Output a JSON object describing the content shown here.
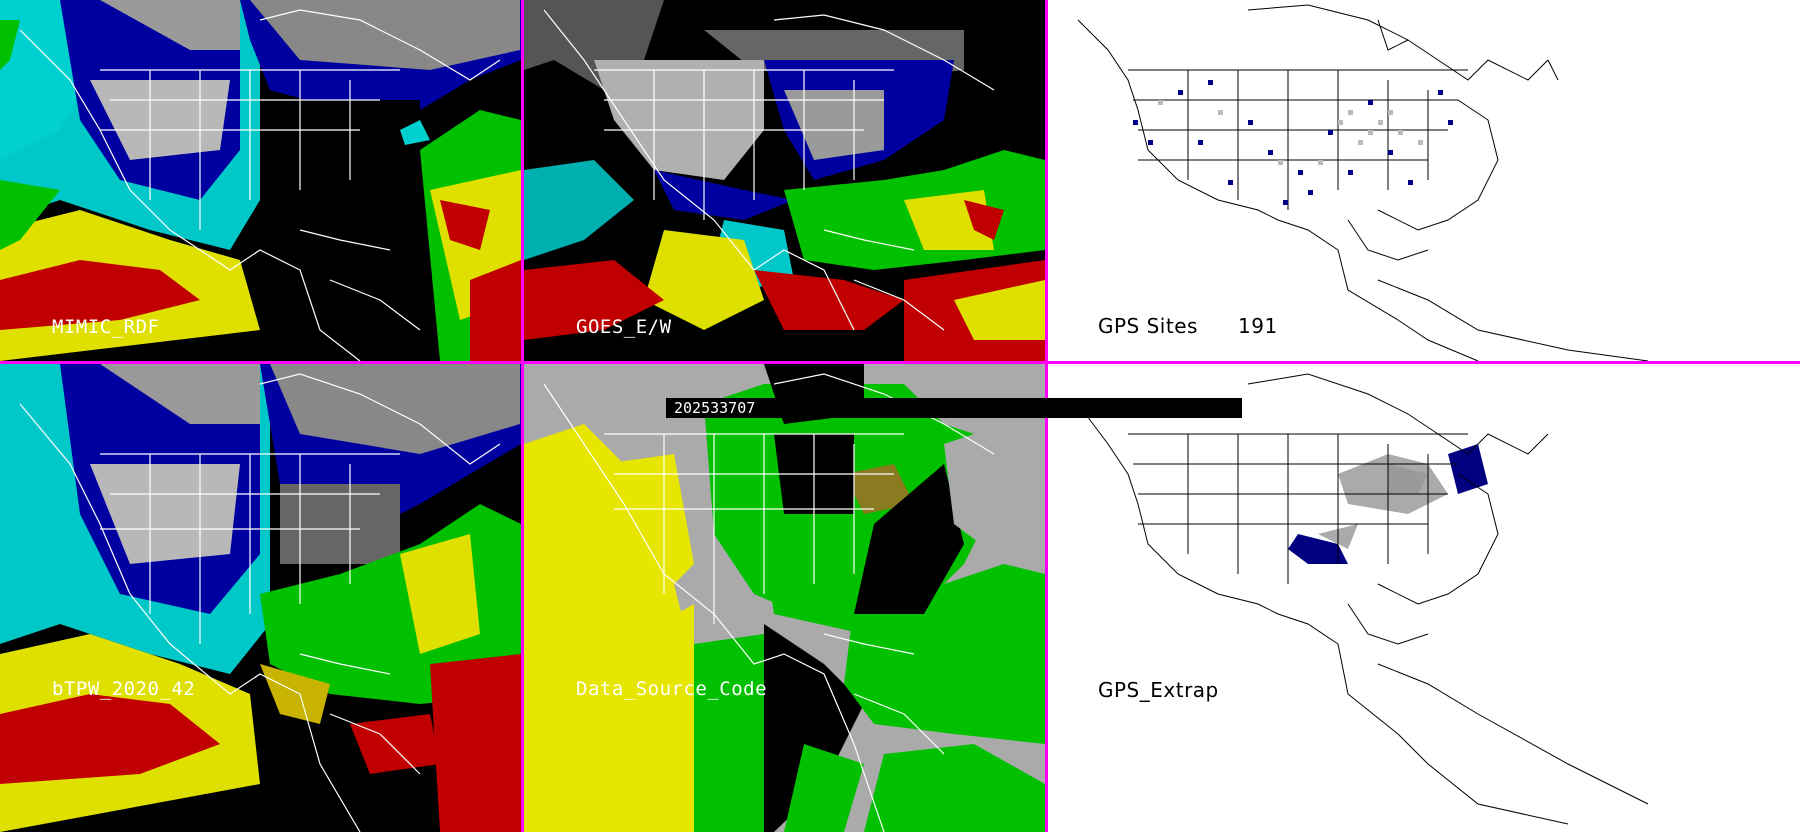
{
  "panels": {
    "p1": {
      "label": "MIMIC_RDF"
    },
    "p2": {
      "label": "GOES_E/W"
    },
    "p3": {
      "label": "GPS Sites",
      "count": "191"
    },
    "p4": {
      "label": "bTPW_2020_42"
    },
    "p5": {
      "label": "Data_Source_Code"
    },
    "p6": {
      "label": "GPS_Extrap"
    }
  },
  "timestamp": "202533707",
  "colors": {
    "divider": "#ff00ff",
    "tpw_scale": [
      "#00e0e0",
      "#0000a0",
      "#00c000",
      "#e0e000",
      "#c00000"
    ],
    "source_codes": [
      "#e6e600",
      "#00c000",
      "#aaaaaa",
      "#8a7a20"
    ]
  }
}
